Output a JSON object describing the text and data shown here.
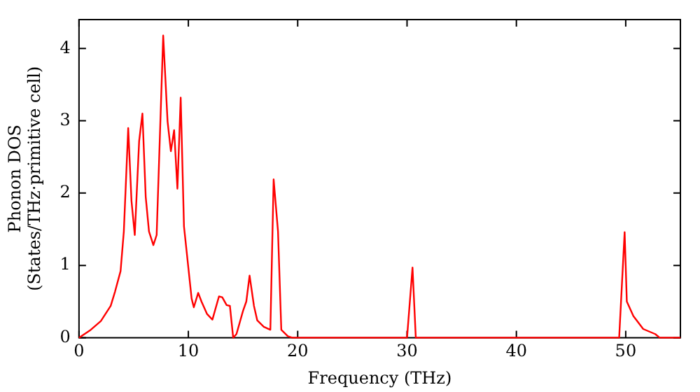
{
  "chart_data": {
    "type": "line",
    "xlabel": "Frequency (THz)",
    "ylabel": "Phonon DOS\n(States/THz·primitive cell)",
    "x": [
      0,
      1,
      2,
      2.9,
      3.3,
      3.8,
      4.1,
      4.5,
      4.8,
      5.1,
      5.5,
      5.8,
      6.1,
      6.4,
      6.8,
      7.1,
      7.7,
      8.1,
      8.4,
      8.7,
      9.0,
      9.3,
      9.6,
      10.3,
      10.5,
      10.9,
      11.2,
      11.7,
      12.2,
      12.8,
      13.1,
      13.5,
      13.8,
      14.1,
      14.4,
      15.0,
      15.3,
      15.6,
      16.0,
      16.3,
      16.9,
      17.5,
      17.8,
      18.2,
      18.5,
      19.1,
      19.5,
      25,
      30.0,
      30.5,
      30.8,
      40,
      49.4,
      49.9,
      50.1,
      50.7,
      51.6,
      52.7,
      53.1,
      55
    ],
    "series": [
      {
        "color": "#ff0000",
        "values": [
          0,
          0.1,
          0.23,
          0.44,
          0.64,
          0.92,
          1.47,
          2.9,
          1.89,
          1.42,
          2.72,
          3.1,
          1.95,
          1.47,
          1.28,
          1.42,
          4.18,
          2.99,
          2.58,
          2.87,
          2.06,
          3.32,
          1.54,
          0.54,
          0.42,
          0.62,
          0.5,
          0.33,
          0.25,
          0.57,
          0.56,
          0.45,
          0.44,
          0,
          0.05,
          0.37,
          0.5,
          0.86,
          0.44,
          0.24,
          0.15,
          0.11,
          2.19,
          1.47,
          0.11,
          0.02,
          0,
          0,
          0,
          0.97,
          0,
          0,
          0,
          1.46,
          0.5,
          0.3,
          0.12,
          0.05,
          0,
          0
        ]
      }
    ],
    "xlim": [
      0,
      55
    ],
    "xticks": [
      0,
      10,
      20,
      30,
      40,
      50
    ],
    "ylim": [
      0,
      4.4
    ],
    "yticks": [
      0,
      1,
      2,
      3,
      4
    ],
    "grid": false,
    "legend": false,
    "marker": "none",
    "line_style": "solid"
  }
}
